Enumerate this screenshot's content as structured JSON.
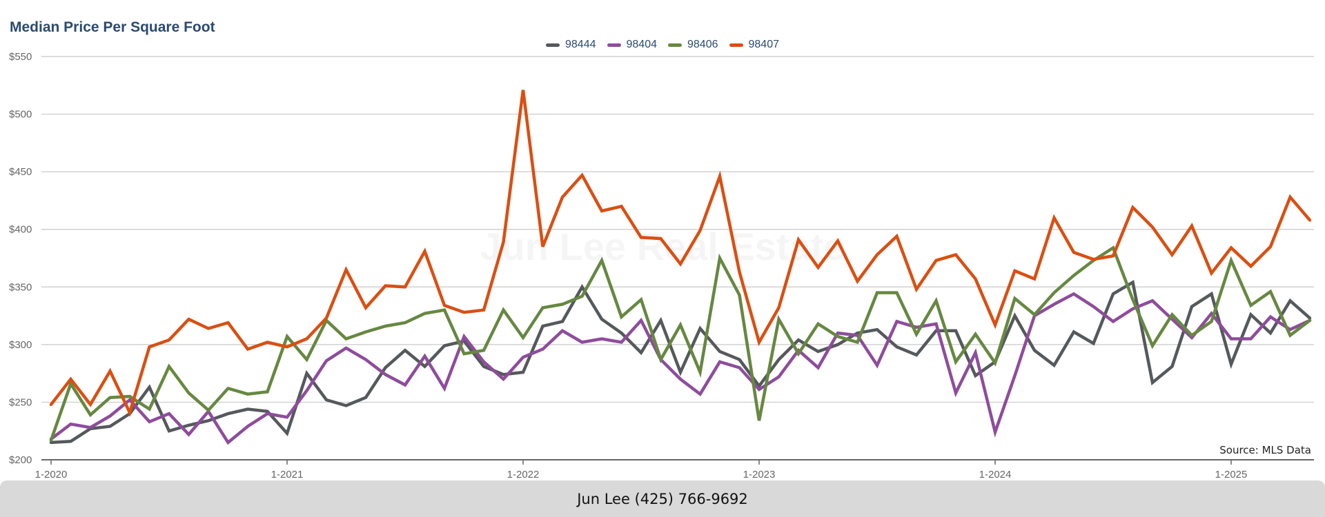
{
  "colors": {
    "98444": "#55595c",
    "98404": "#8e4c9c",
    "98406": "#668841",
    "98407": "#da4f12"
  },
  "watermark": "Jun Lee Real Estate",
  "source": "Source: MLS Data",
  "footer": "Jun Lee (425) 766-9692",
  "chart_data": {
    "type": "line",
    "title": "Median Price Per Square Foot",
    "xlabel": "",
    "ylabel": "",
    "ylim": [
      200,
      550
    ],
    "yticks": [
      "$200",
      "$250",
      "$300",
      "$350",
      "$400",
      "$450",
      "$500",
      "$550"
    ],
    "ytick_values": [
      200,
      250,
      300,
      350,
      400,
      450,
      500,
      550
    ],
    "xticks": [
      "1-2020",
      "1-2021",
      "1-2022",
      "1-2023",
      "1-2024",
      "1-2025"
    ],
    "x_start": "1-2020",
    "x_end": "5-2025",
    "grid": true,
    "legend_position": "top-center",
    "series": [
      {
        "name": "98444",
        "values": [
          215,
          216,
          227,
          229,
          240,
          263,
          225,
          230,
          234,
          240,
          244,
          242,
          223,
          275,
          252,
          247,
          254,
          280,
          295,
          281,
          299,
          303,
          281,
          274,
          276,
          316,
          320,
          350,
          322,
          310,
          293,
          321,
          276,
          314,
          294,
          287,
          264,
          287,
          304,
          294,
          300,
          310,
          313,
          298,
          291,
          312,
          312,
          273,
          285,
          325,
          295,
          282,
          311,
          301,
          344,
          354,
          267,
          281,
          333,
          344,
          283,
          326,
          310,
          338,
          323
        ]
      },
      {
        "name": "98404",
        "values": [
          218,
          231,
          228,
          238,
          252,
          233,
          240,
          222,
          242,
          215,
          229,
          240,
          237,
          260,
          286,
          297,
          287,
          274,
          265,
          290,
          262,
          307,
          285,
          270,
          289,
          296,
          312,
          302,
          305,
          302,
          321,
          287,
          270,
          257,
          285,
          280,
          261,
          272,
          295,
          280,
          310,
          308,
          282,
          320,
          315,
          318,
          258,
          293,
          224,
          273,
          325,
          335,
          344,
          333,
          320,
          331,
          338,
          322,
          306,
          327,
          305,
          305,
          324,
          313,
          321
        ]
      },
      {
        "name": "98406",
        "values": [
          217,
          266,
          239,
          254,
          255,
          244,
          281,
          258,
          243,
          262,
          257,
          259,
          307,
          287,
          321,
          305,
          311,
          316,
          319,
          327,
          330,
          292,
          295,
          330,
          306,
          332,
          335,
          342,
          373,
          324,
          339,
          287,
          317,
          276,
          375,
          343,
          234,
          322,
          292,
          318,
          307,
          302,
          345,
          345,
          309,
          338,
          285,
          309,
          284,
          340,
          326,
          345,
          360,
          373,
          384,
          339,
          299,
          326,
          308,
          320,
          373,
          334,
          346,
          308,
          321
        ]
      },
      {
        "name": "98407",
        "values": [
          248,
          270,
          248,
          277,
          241,
          298,
          304,
          322,
          314,
          319,
          296,
          302,
          298,
          305,
          323,
          365,
          332,
          351,
          350,
          381,
          334,
          328,
          330,
          389,
          521,
          385,
          428,
          447,
          416,
          420,
          393,
          392,
          370,
          399,
          446,
          363,
          302,
          332,
          391,
          367,
          390,
          355,
          378,
          394,
          348,
          373,
          378,
          357,
          317,
          364,
          357,
          410,
          380,
          374,
          377,
          419,
          402,
          378,
          403,
          362,
          384,
          368,
          385,
          428,
          408
        ]
      }
    ]
  }
}
